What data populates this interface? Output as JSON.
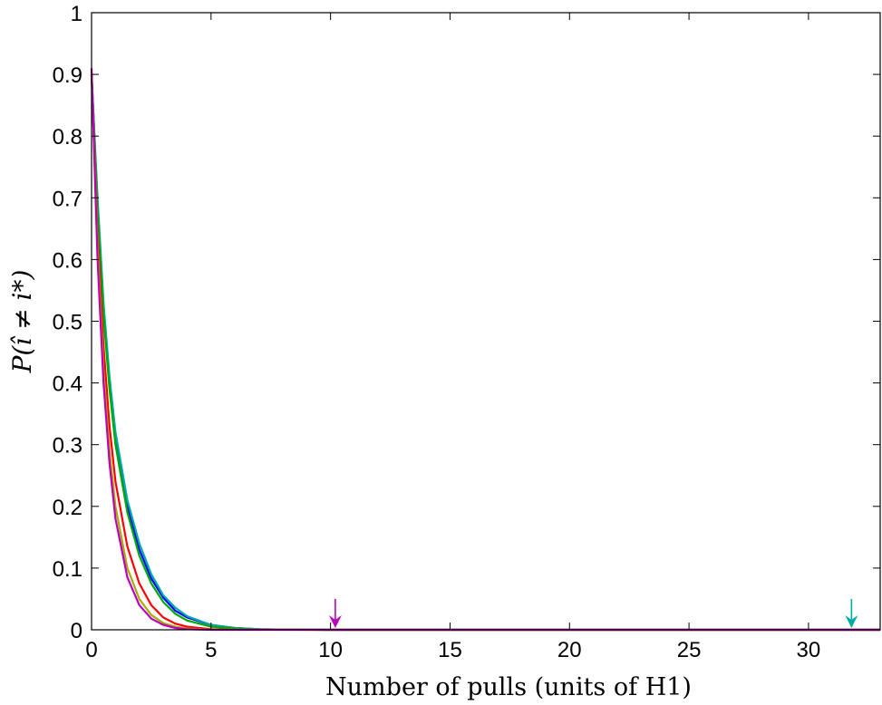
{
  "chart_data": {
    "type": "line",
    "title": "",
    "xlabel": "Number of pulls (units of H1)",
    "ylabel": "P(î ≠ i*)",
    "xlim": [
      0,
      33
    ],
    "ylim": [
      0,
      1
    ],
    "xticks": [
      0,
      5,
      10,
      15,
      20,
      25,
      30
    ],
    "yticks": [
      0,
      0.1,
      0.2,
      0.3,
      0.4,
      0.5,
      0.6,
      0.7,
      0.8,
      0.9,
      1
    ],
    "grid": false,
    "legend": "none",
    "series": [
      {
        "color": "#0000ff",
        "x": [
          0,
          0.25,
          0.5,
          0.75,
          1,
          1.5,
          2,
          2.5,
          3,
          3.5,
          4,
          5,
          6,
          7,
          8,
          10,
          33
        ],
        "y": [
          0.9,
          0.69,
          0.52,
          0.4,
          0.31,
          0.2,
          0.13,
          0.083,
          0.052,
          0.031,
          0.02,
          0.008,
          0.003,
          0.001,
          0.0005,
          0,
          0
        ]
      },
      {
        "color": "#00aaaa",
        "x": [
          0,
          0.25,
          0.5,
          0.75,
          1,
          1.5,
          2,
          2.5,
          3,
          3.5,
          4,
          5,
          6,
          7,
          8,
          10,
          33
        ],
        "y": [
          0.9,
          0.7,
          0.53,
          0.41,
          0.32,
          0.21,
          0.14,
          0.09,
          0.056,
          0.036,
          0.022,
          0.008,
          0.003,
          0.001,
          0.0005,
          0,
          0
        ]
      },
      {
        "color": "#00aa00",
        "x": [
          0,
          0.25,
          0.5,
          0.75,
          1,
          1.5,
          2,
          2.5,
          3,
          3.5,
          4,
          5,
          6,
          7,
          10,
          33
        ],
        "y": [
          0.9,
          0.68,
          0.51,
          0.39,
          0.3,
          0.19,
          0.12,
          0.075,
          0.045,
          0.026,
          0.015,
          0.005,
          0.002,
          0.0005,
          0,
          0
        ]
      },
      {
        "color": "#ff0000",
        "x": [
          0,
          0.25,
          0.5,
          0.75,
          1,
          1.5,
          2,
          2.5,
          3,
          3.5,
          4,
          5,
          6,
          10,
          33
        ],
        "y": [
          0.9,
          0.64,
          0.46,
          0.33,
          0.24,
          0.135,
          0.075,
          0.04,
          0.02,
          0.01,
          0.005,
          0.001,
          0.0003,
          0,
          0
        ]
      },
      {
        "color": "#aaaa00",
        "x": [
          0,
          0.25,
          0.5,
          0.75,
          1,
          1.5,
          2,
          2.5,
          3,
          3.5,
          4,
          5,
          10,
          33
        ],
        "y": [
          0.9,
          0.62,
          0.42,
          0.29,
          0.2,
          0.1,
          0.05,
          0.024,
          0.011,
          0.005,
          0.002,
          0.0003,
          0,
          0
        ]
      },
      {
        "color": "#bb00bb",
        "x": [
          0,
          0.25,
          0.5,
          0.75,
          1,
          1.5,
          2,
          2.5,
          3,
          3.5,
          4,
          5,
          10,
          33
        ],
        "y": [
          0.91,
          0.6,
          0.4,
          0.27,
          0.18,
          0.085,
          0.04,
          0.018,
          0.008,
          0.003,
          0.001,
          0,
          0,
          0
        ]
      }
    ],
    "arrows": [
      {
        "x": 10.2,
        "color": "#bb00bb"
      },
      {
        "x": 31.8,
        "color": "#00aaaa"
      }
    ]
  }
}
